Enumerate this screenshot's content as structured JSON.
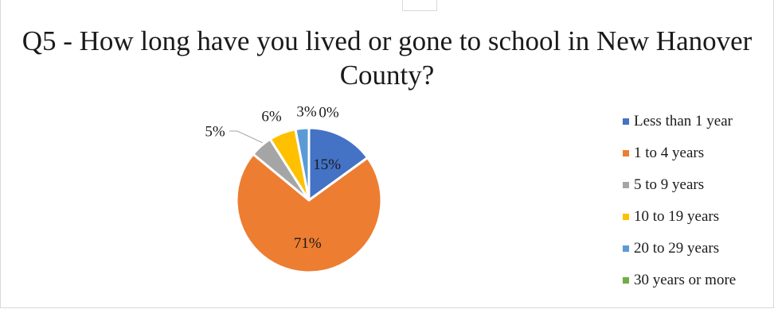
{
  "chart_data": {
    "type": "pie",
    "title": "Q5 - How long have you lived or gone to school in New Hanover County?",
    "categories": [
      "Less than 1 year",
      "1 to 4 years",
      "5 to 9 years",
      "10 to 19 years",
      "20 to 29 years",
      "30 years or more"
    ],
    "values": [
      15,
      71,
      5,
      6,
      3,
      0
    ],
    "labels": [
      "15%",
      "71%",
      "5%",
      "6%",
      "3%",
      "0%"
    ],
    "colors": [
      "#4472C4",
      "#ED7D31",
      "#A5A5A5",
      "#FFC000",
      "#5B9BD5",
      "#70AD47"
    ],
    "legend_position": "right"
  }
}
